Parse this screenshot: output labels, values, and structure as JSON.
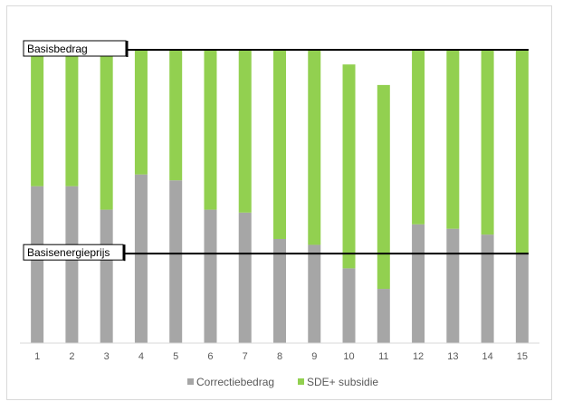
{
  "chart_data": {
    "type": "bar",
    "stacked": true,
    "categories": [
      "1",
      "2",
      "3",
      "4",
      "5",
      "6",
      "7",
      "8",
      "9",
      "10",
      "11",
      "12",
      "13",
      "14",
      "15"
    ],
    "ylim": [
      0,
      100
    ],
    "series": [
      {
        "name": "Correctiebedrag",
        "color": "#a6a6a6",
        "values": [
          53.5,
          53.5,
          45.5,
          57.5,
          55.5,
          45.5,
          44.5,
          35.5,
          33.5,
          25.5,
          18.5,
          40.5,
          39.0,
          37.0,
          30.5
        ]
      },
      {
        "name": "SDE+ subsidie",
        "color": "#92d050",
        "values": [
          46.5,
          46.5,
          54.5,
          42.5,
          44.5,
          54.5,
          55.5,
          64.5,
          66.5,
          69.5,
          69.5,
          59.5,
          61.0,
          63.0,
          69.5
        ]
      }
    ],
    "reference_lines": [
      {
        "label": "Basisbedrag",
        "value": 100
      },
      {
        "label": "Basisenergieprijs",
        "value": 30.5
      }
    ],
    "grid": false,
    "legend_position": "bottom"
  }
}
